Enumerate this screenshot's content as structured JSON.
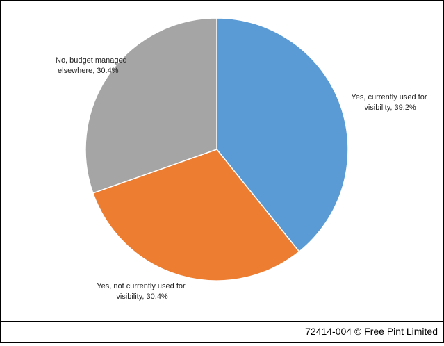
{
  "chart_data": {
    "type": "pie",
    "values": [
      39.2,
      30.4,
      30.4
    ],
    "value_labels": [
      "Yes, currently used for visibility, 39.2%",
      "Yes, not currently used for visibility, 30.4%",
      "No, budget managed elsewhere, 30.4%"
    ],
    "colors": [
      "#5b9bd5",
      "#ed7d31",
      "#a5a5a5"
    ]
  },
  "footer": "72414-004 © Free Pint Limited"
}
